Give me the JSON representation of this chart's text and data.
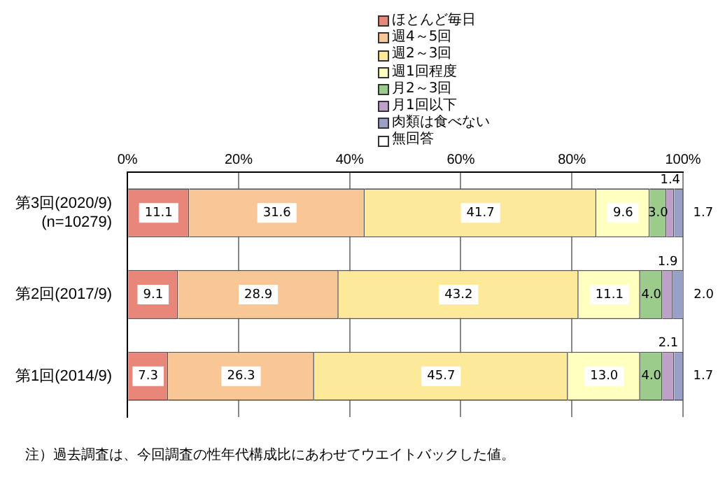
{
  "chart_data": {
    "type": "bar",
    "orientation": "horizontal",
    "stacked": true,
    "categories": [
      "第3回(2020/9)\n(n=10279)",
      "第2回(2017/9)",
      "第1回(2014/9)"
    ],
    "series": [
      {
        "name": "ほとんど毎日",
        "color": "#e8867a",
        "values": [
          11.1,
          9.1,
          7.3
        ],
        "value_labels": [
          "11.1",
          "9.1",
          "7.3"
        ]
      },
      {
        "name": "週4～5回",
        "color": "#f9c795",
        "values": [
          31.6,
          28.9,
          26.3
        ],
        "value_labels": [
          "31.6",
          "28.9",
          "26.3"
        ]
      },
      {
        "name": "週2～3回",
        "color": "#fde99a",
        "values": [
          41.7,
          43.2,
          45.7
        ],
        "value_labels": [
          "41.7",
          "43.2",
          "45.7"
        ]
      },
      {
        "name": "週1回程度",
        "color": "#ffffc0",
        "values": [
          9.6,
          11.1,
          13.0
        ],
        "value_labels": [
          "9.6",
          "11.1",
          "13.0"
        ]
      },
      {
        "name": "月2～3回",
        "color": "#9ccc8c",
        "values": [
          3.0,
          4.0,
          4.0
        ],
        "value_labels": [
          "3.0",
          "4.0",
          "4.0"
        ]
      },
      {
        "name": "月1回以下",
        "color": "#bfa0c8",
        "values": [
          1.4,
          1.9,
          2.1
        ],
        "value_labels": [
          "1.4",
          "1.9",
          "2.1"
        ]
      },
      {
        "name": "肉類は食べない",
        "color": "#98a0c8",
        "values": [
          1.7,
          2.0,
          1.7
        ],
        "value_labels": [
          "1.7",
          "2.0",
          "1.7"
        ]
      },
      {
        "name": "無回答",
        "color": "#ffffff",
        "values": [
          null,
          null,
          null
        ]
      }
    ],
    "xlim": [
      0,
      100
    ],
    "xticks": [
      {
        "value": 0,
        "label": "0%"
      },
      {
        "value": 20,
        "label": "20%"
      },
      {
        "value": 40,
        "label": "40%"
      },
      {
        "value": 60,
        "label": "60%"
      },
      {
        "value": 80,
        "label": "80%"
      },
      {
        "value": 100,
        "label": "100%"
      }
    ],
    "grid": "x",
    "legend": "top right",
    "annotations": [
      "注）過去調査は、今回調査の性年代構成比にあわせてウエイトバックした値。"
    ]
  }
}
